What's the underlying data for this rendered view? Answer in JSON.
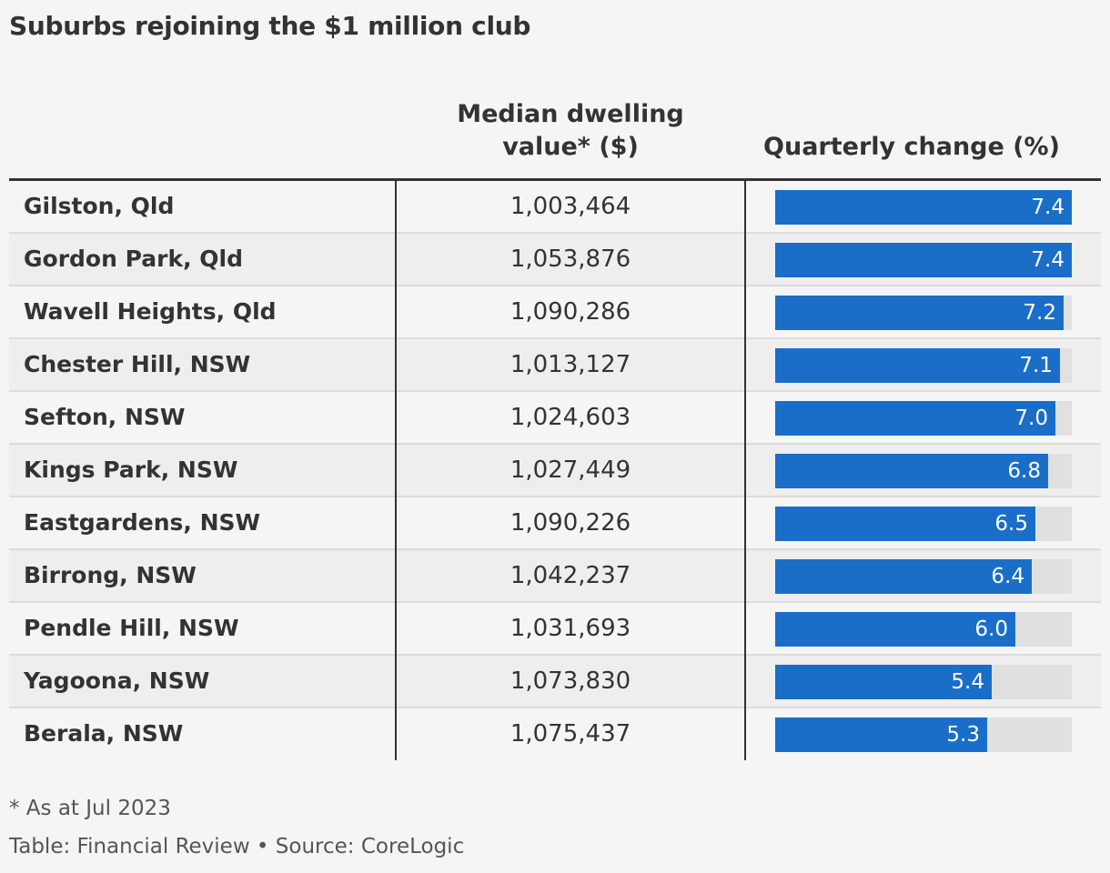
{
  "title": "Suburbs rejoining the $1 million club",
  "columns": {
    "value_line1": "Median dwelling",
    "value_line2": "value* ($)",
    "change": "Quarterly change (%)"
  },
  "footnote": "* As at Jul 2023",
  "source": "Table: Financial Review • Source: CoreLogic",
  "colors": {
    "bar": "#1a6ec8",
    "track": "#e0e0e0",
    "text": "#333333"
  },
  "chart_data": {
    "type": "table",
    "max_change": 7.4,
    "rows": [
      {
        "suburb": "Gilston, Qld",
        "value": "1,003,464",
        "change": 7.4,
        "change_label": "7.4"
      },
      {
        "suburb": "Gordon Park, Qld",
        "value": "1,053,876",
        "change": 7.4,
        "change_label": "7.4"
      },
      {
        "suburb": "Wavell Heights, Qld",
        "value": "1,090,286",
        "change": 7.2,
        "change_label": "7.2"
      },
      {
        "suburb": "Chester Hill, NSW",
        "value": "1,013,127",
        "change": 7.1,
        "change_label": "7.1"
      },
      {
        "suburb": "Sefton, NSW",
        "value": "1,024,603",
        "change": 7.0,
        "change_label": "7.0"
      },
      {
        "suburb": "Kings Park, NSW",
        "value": "1,027,449",
        "change": 6.8,
        "change_label": "6.8"
      },
      {
        "suburb": "Eastgardens, NSW",
        "value": "1,090,226",
        "change": 6.5,
        "change_label": "6.5"
      },
      {
        "suburb": "Birrong, NSW",
        "value": "1,042,237",
        "change": 6.4,
        "change_label": "6.4"
      },
      {
        "suburb": "Pendle Hill, NSW",
        "value": "1,031,693",
        "change": 6.0,
        "change_label": "6.0"
      },
      {
        "suburb": "Yagoona, NSW",
        "value": "1,073,830",
        "change": 5.4,
        "change_label": "5.4"
      },
      {
        "suburb": "Berala, NSW",
        "value": "1,075,437",
        "change": 5.3,
        "change_label": "5.3"
      }
    ]
  }
}
